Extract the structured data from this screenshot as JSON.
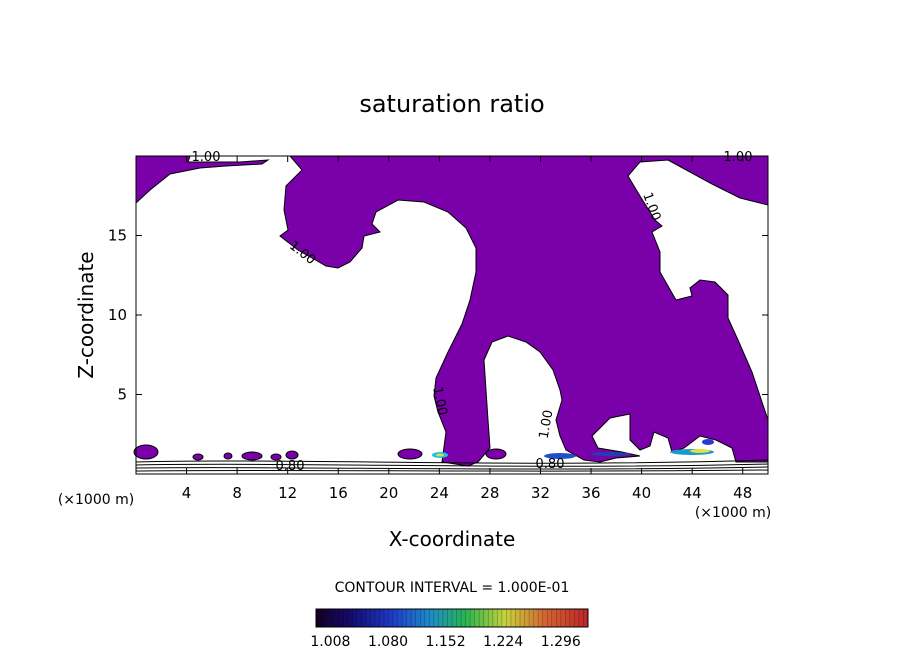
{
  "chart_data": {
    "type": "contour",
    "title": "saturation ratio",
    "xlabel": "X-coordinate",
    "ylabel": "Z-coordinate",
    "x_unit": "(×1000 m)",
    "y_unit": "(×1000 m)",
    "xlim": [
      0,
      50
    ],
    "ylim": [
      0,
      20
    ],
    "xticks": [
      4,
      8,
      12,
      16,
      20,
      24,
      28,
      32,
      36,
      40,
      44,
      48
    ],
    "yticks": [
      5,
      10,
      15
    ],
    "contour_interval_text": "CONTOUR INTERVAL = 1.000E-01",
    "contour_labels": [
      "1.00",
      "1.00",
      "1.00",
      "1.00",
      "1.00",
      "1.00",
      "0.80",
      "0.80"
    ],
    "colorbar": {
      "ticks": [
        "1.008",
        "1.080",
        "1.152",
        "1.224",
        "1.296"
      ],
      "range": [
        0.99,
        1.33
      ]
    },
    "fill_color": "#7a00aa"
  }
}
